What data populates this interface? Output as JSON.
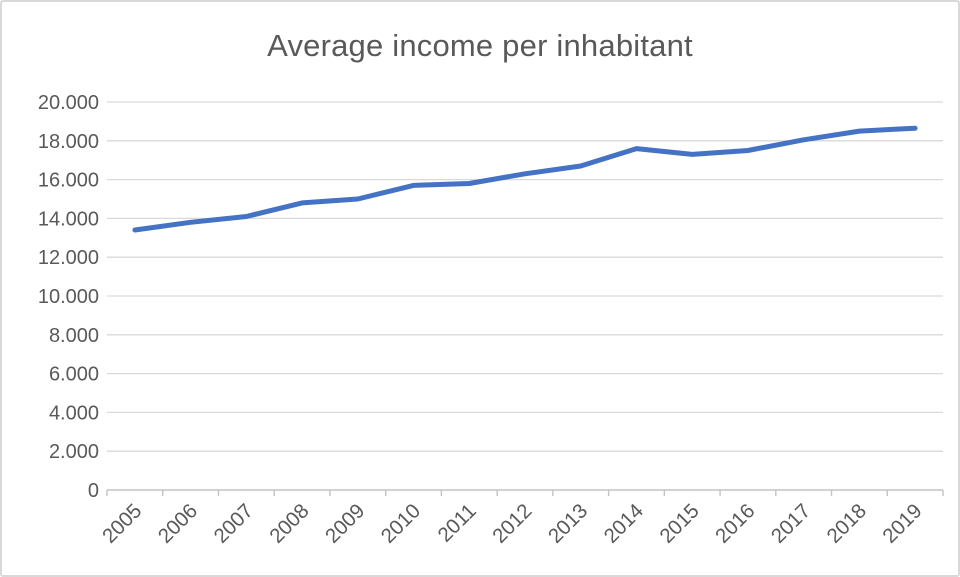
{
  "chart_data": {
    "type": "line",
    "title": "Average income per inhabitant",
    "categories": [
      "2005",
      "2006",
      "2007",
      "2008",
      "2009",
      "2010",
      "2011",
      "2012",
      "2013",
      "2014",
      "2015",
      "2016",
      "2017",
      "2018",
      "2019"
    ],
    "series": [
      {
        "name": "Average income per inhabitant",
        "values": [
          13400,
          13800,
          14100,
          14800,
          15000,
          15700,
          15800,
          16300,
          16700,
          17600,
          17300,
          17500,
          18050,
          18500,
          18650
        ]
      }
    ],
    "xlabel": "",
    "ylabel": "",
    "ylim": [
      0,
      20000
    ],
    "grid": true,
    "legend_position": "none",
    "y_ticks": [
      {
        "value": 0,
        "label": "0"
      },
      {
        "value": 2000,
        "label": "2.000"
      },
      {
        "value": 4000,
        "label": "4.000"
      },
      {
        "value": 6000,
        "label": "6.000"
      },
      {
        "value": 8000,
        "label": "8.000"
      },
      {
        "value": 10000,
        "label": "10.000"
      },
      {
        "value": 12000,
        "label": "12.000"
      },
      {
        "value": 14000,
        "label": "14.000"
      },
      {
        "value": 16000,
        "label": "16.000"
      },
      {
        "value": 18000,
        "label": "18.000"
      },
      {
        "value": 20000,
        "label": "20.000"
      }
    ],
    "colors": {
      "line": "#4472c4",
      "grid": "#d9d9d9",
      "axis": "#c3c3c3",
      "labels": "#595959",
      "title": "#595959"
    }
  }
}
